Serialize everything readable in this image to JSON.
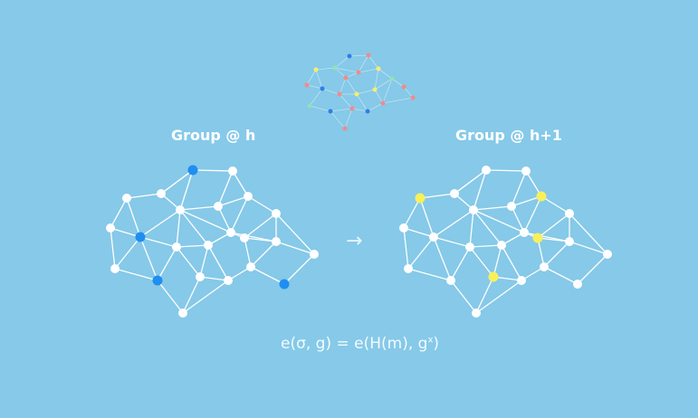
{
  "labels": {
    "left": "Group @ h",
    "right": "Group @ h+1"
  },
  "arrow": "→",
  "formula": {
    "main": "e(σ, g) = e(H(m), g",
    "sup": "x",
    "tail": ")"
  },
  "colors": {
    "background": "#86c9e8",
    "edge": "#ffffff",
    "node": "#ffffff",
    "highlight_blue": "#1f8ef1",
    "highlight_yellow": "#f7f05a",
    "small_edge": "#bfe3f2",
    "small_blue": "#2f7fe6",
    "small_yellow": "#f4f06a",
    "small_red": "#f28a8a",
    "small_green": "#8fe3b4"
  },
  "icons": {
    "arrow": "right-arrow-icon",
    "network": "network-graph-icon"
  }
}
